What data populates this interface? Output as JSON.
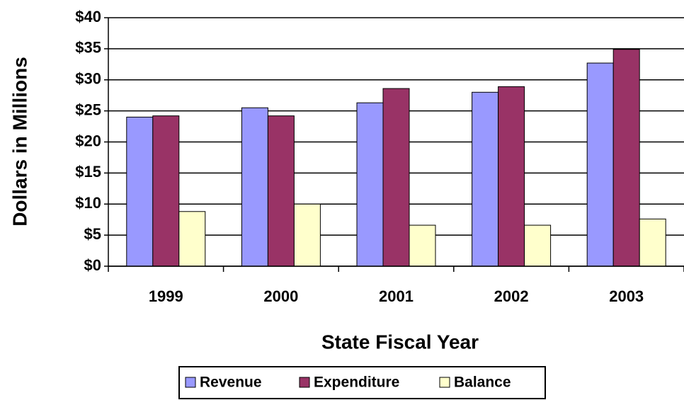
{
  "chart_data": {
    "type": "bar",
    "x_label": "State Fiscal Year",
    "y_label": "Dollars in Millions",
    "categories": [
      "1999",
      "2000",
      "2001",
      "2002",
      "2003"
    ],
    "series": [
      {
        "name": "Revenue",
        "color": "#9999ff",
        "values": [
          24.0,
          25.5,
          26.3,
          28.0,
          32.7
        ]
      },
      {
        "name": "Expenditure",
        "color": "#993366",
        "values": [
          24.2,
          24.2,
          28.6,
          28.9,
          34.9
        ]
      },
      {
        "name": "Balance",
        "color": "#ffffcc",
        "values": [
          8.8,
          10.0,
          6.6,
          6.6,
          7.6
        ]
      }
    ],
    "ylim": [
      0,
      40
    ],
    "yticks": [
      {
        "value": 0,
        "label": "$0"
      },
      {
        "value": 5,
        "label": "$5"
      },
      {
        "value": 10,
        "label": "$10"
      },
      {
        "value": 15,
        "label": "$15"
      },
      {
        "value": 20,
        "label": "$20"
      },
      {
        "value": 25,
        "label": "$25"
      },
      {
        "value": 30,
        "label": "$30"
      },
      {
        "value": 35,
        "label": "$35"
      },
      {
        "value": 40,
        "label": "$40"
      }
    ],
    "grid": true,
    "legend": "bottom"
  }
}
